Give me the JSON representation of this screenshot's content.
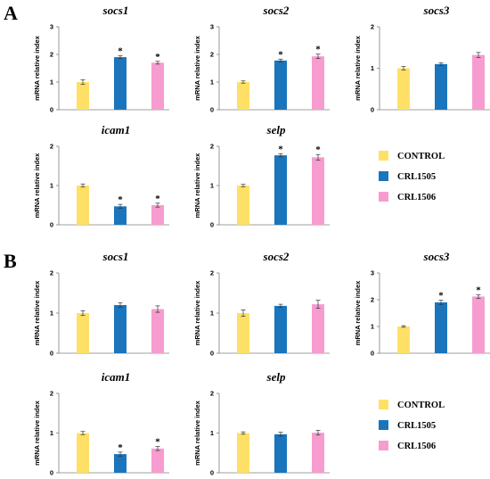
{
  "panels": [
    {
      "letter": "A"
    },
    {
      "letter": "B"
    }
  ],
  "legends": [
    {
      "items": [
        {
          "label": "CONTROL",
          "color": "#FFE066"
        },
        {
          "label": "CRL1505",
          "color": "#1A75BC"
        },
        {
          "label": "CRL1506",
          "color": "#F79CCF"
        }
      ]
    },
    {
      "items": [
        {
          "label": "CONTROL",
          "color": "#FFE066"
        },
        {
          "label": "CRL1505",
          "color": "#1A75BC"
        },
        {
          "label": "CRL1506",
          "color": "#F79CCF"
        }
      ]
    }
  ],
  "chart_data": [
    {
      "panel": "A",
      "type": "bar",
      "title": "socs1",
      "ylabel": "mRNA relative index",
      "ylim": [
        0,
        3
      ],
      "yticks": [
        "0",
        "1",
        "2",
        "3"
      ],
      "categories": [
        "CONTROL",
        "CRL1505",
        "CRL1506"
      ],
      "values": [
        1.0,
        1.9,
        1.7
      ],
      "errors": [
        0.08,
        0.05,
        0.05
      ],
      "significance": [
        "",
        "*",
        "*"
      ]
    },
    {
      "panel": "A",
      "type": "bar",
      "title": "socs2",
      "ylabel": "mRNA relative index",
      "ylim": [
        0,
        3
      ],
      "yticks": [
        "0",
        "1",
        "2",
        "3"
      ],
      "categories": [
        "CONTROL",
        "CRL1505",
        "CRL1506"
      ],
      "values": [
        1.0,
        1.78,
        1.93
      ],
      "errors": [
        0.04,
        0.05,
        0.08
      ],
      "significance": [
        "",
        "*",
        "*"
      ]
    },
    {
      "panel": "A",
      "type": "bar",
      "title": "socs3",
      "ylabel": "mRNA relative index",
      "ylim": [
        0,
        2
      ],
      "yticks": [
        "0",
        "1",
        "2"
      ],
      "categories": [
        "CONTROL",
        "CRL1505",
        "CRL1506"
      ],
      "values": [
        1.0,
        1.1,
        1.32
      ],
      "errors": [
        0.04,
        0.03,
        0.06
      ],
      "significance": [
        "",
        "",
        ""
      ]
    },
    {
      "panel": "A",
      "type": "bar",
      "title": "icam1",
      "ylabel": "mRNA relative index",
      "ylim": [
        0,
        2
      ],
      "yticks": [
        "0",
        "1",
        "2"
      ],
      "categories": [
        "CONTROL",
        "CRL1505",
        "CRL1506"
      ],
      "values": [
        1.0,
        0.47,
        0.5
      ],
      "errors": [
        0.04,
        0.05,
        0.05
      ],
      "significance": [
        "",
        "*",
        "*"
      ]
    },
    {
      "panel": "A",
      "type": "bar",
      "title": "selp",
      "ylabel": "mRNA relative index",
      "ylim": [
        0,
        2
      ],
      "yticks": [
        "0",
        "1",
        "2"
      ],
      "categories": [
        "CONTROL",
        "CRL1505",
        "CRL1506"
      ],
      "values": [
        1.0,
        1.77,
        1.72
      ],
      "errors": [
        0.03,
        0.04,
        0.07
      ],
      "significance": [
        "",
        "*",
        "*"
      ]
    },
    {
      "panel": "B",
      "type": "bar",
      "title": "socs1",
      "ylabel": "mRNA relative index",
      "ylim": [
        0,
        2
      ],
      "yticks": [
        "0",
        "1",
        "2"
      ],
      "categories": [
        "CONTROL",
        "CRL1505",
        "CRL1506"
      ],
      "values": [
        1.0,
        1.2,
        1.1
      ],
      "errors": [
        0.06,
        0.06,
        0.08
      ],
      "significance": [
        "",
        "",
        ""
      ]
    },
    {
      "panel": "B",
      "type": "bar",
      "title": "socs2",
      "ylabel": "mRNA relative index",
      "ylim": [
        0,
        2
      ],
      "yticks": [
        "0",
        "1",
        "2"
      ],
      "categories": [
        "CONTROL",
        "CRL1505",
        "CRL1506"
      ],
      "values": [
        1.0,
        1.18,
        1.22
      ],
      "errors": [
        0.08,
        0.04,
        0.1
      ],
      "significance": [
        "",
        "",
        ""
      ]
    },
    {
      "panel": "B",
      "type": "bar",
      "title": "socs3",
      "ylabel": "mRNA relative index",
      "ylim": [
        0,
        3
      ],
      "yticks": [
        "0",
        "1",
        "2",
        "3"
      ],
      "categories": [
        "CONTROL",
        "CRL1505",
        "CRL1506"
      ],
      "values": [
        1.0,
        1.9,
        2.12
      ],
      "errors": [
        0.03,
        0.08,
        0.07
      ],
      "significance": [
        "",
        "*",
        "*"
      ]
    },
    {
      "panel": "B",
      "type": "bar",
      "title": "icam1",
      "ylabel": "mRNA relative index",
      "ylim": [
        0,
        2
      ],
      "yticks": [
        "0",
        "1",
        "2"
      ],
      "categories": [
        "CONTROL",
        "CRL1505",
        "CRL1506"
      ],
      "values": [
        1.0,
        0.47,
        0.61
      ],
      "errors": [
        0.04,
        0.05,
        0.05
      ],
      "significance": [
        "",
        "*",
        "*"
      ]
    },
    {
      "panel": "B",
      "type": "bar",
      "title": "selp",
      "ylabel": "mRNA relative index",
      "ylim": [
        0,
        2
      ],
      "yticks": [
        "0",
        "1",
        "2"
      ],
      "categories": [
        "CONTROL",
        "CRL1505",
        "CRL1506"
      ],
      "values": [
        1.0,
        0.97,
        1.01
      ],
      "errors": [
        0.03,
        0.05,
        0.06
      ],
      "significance": [
        "",
        "",
        ""
      ]
    }
  ]
}
